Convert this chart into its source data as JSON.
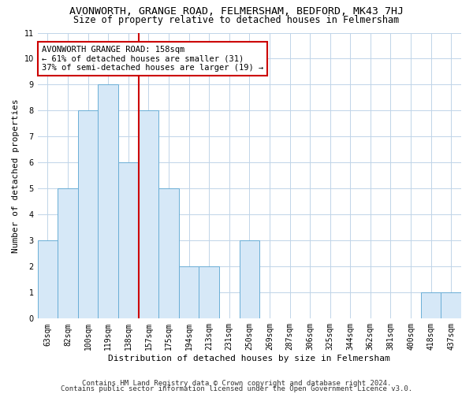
{
  "title": "AVONWORTH, GRANGE ROAD, FELMERSHAM, BEDFORD, MK43 7HJ",
  "subtitle": "Size of property relative to detached houses in Felmersham",
  "xlabel": "Distribution of detached houses by size in Felmersham",
  "ylabel": "Number of detached properties",
  "categories": [
    "63sqm",
    "82sqm",
    "100sqm",
    "119sqm",
    "138sqm",
    "157sqm",
    "175sqm",
    "194sqm",
    "213sqm",
    "231sqm",
    "250sqm",
    "269sqm",
    "287sqm",
    "306sqm",
    "325sqm",
    "344sqm",
    "362sqm",
    "381sqm",
    "400sqm",
    "418sqm",
    "437sqm"
  ],
  "values": [
    3,
    5,
    8,
    9,
    6,
    8,
    5,
    2,
    2,
    0,
    3,
    0,
    0,
    0,
    0,
    0,
    0,
    0,
    0,
    1,
    1
  ],
  "bar_color": "#d6e8f7",
  "bar_edge_color": "#6aaed6",
  "red_line_index": 4.5,
  "annotation_text": "AVONWORTH GRANGE ROAD: 158sqm\n← 61% of detached houses are smaller (31)\n37% of semi-detached houses are larger (19) →",
  "annotation_box_color": "#ffffff",
  "annotation_box_edge": "#cc0000",
  "ylim": [
    0,
    11
  ],
  "yticks": [
    0,
    1,
    2,
    3,
    4,
    5,
    6,
    7,
    8,
    9,
    10,
    11
  ],
  "footer1": "Contains HM Land Registry data © Crown copyright and database right 2024.",
  "footer2": "Contains public sector information licensed under the Open Government Licence v3.0.",
  "bg_color": "#ffffff",
  "grid_color": "#c0d4e8",
  "title_fontsize": 9.5,
  "subtitle_fontsize": 8.5,
  "axis_label_fontsize": 8,
  "tick_fontsize": 7,
  "footer_fontsize": 6.5
}
